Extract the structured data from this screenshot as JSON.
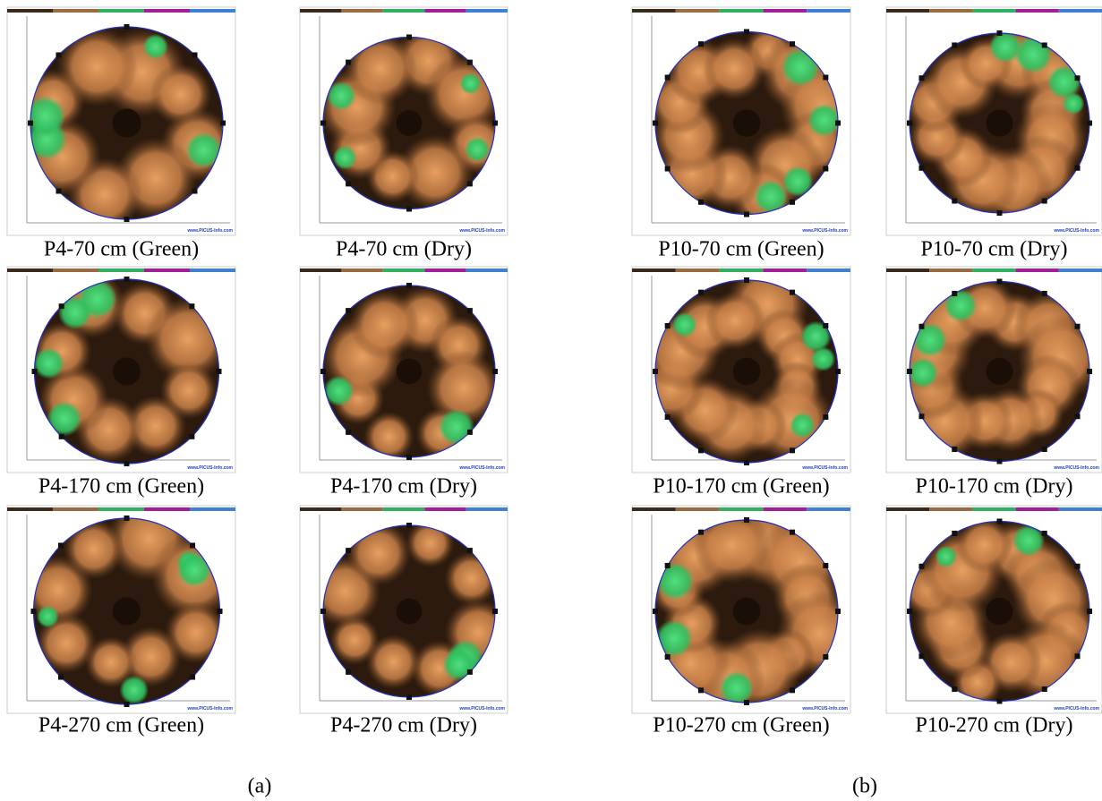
{
  "figure": {
    "watermark": "www.PICUS-Info.com",
    "groups": [
      {
        "label": "(a)",
        "panels": [
          {
            "caption": "P4-70 cm (Green)"
          },
          {
            "caption": "P4-70 cm (Dry)"
          },
          {
            "caption": "P4-170 cm (Green)"
          },
          {
            "caption": "P4-170 cm (Dry)"
          },
          {
            "caption": "P4-270 cm (Green)"
          },
          {
            "caption": "P4-270 cm (Dry)"
          }
        ]
      },
      {
        "label": "(b)",
        "panels": [
          {
            "caption": "P10-70 cm (Green)"
          },
          {
            "caption": "P10-70 cm (Dry)"
          },
          {
            "caption": "P10-170 cm (Green)"
          },
          {
            "caption": "P10-170 cm (Dry)"
          },
          {
            "caption": "P10-270 cm (Green)"
          },
          {
            "caption": "P10-270 cm (Dry)"
          }
        ]
      }
    ]
  }
}
